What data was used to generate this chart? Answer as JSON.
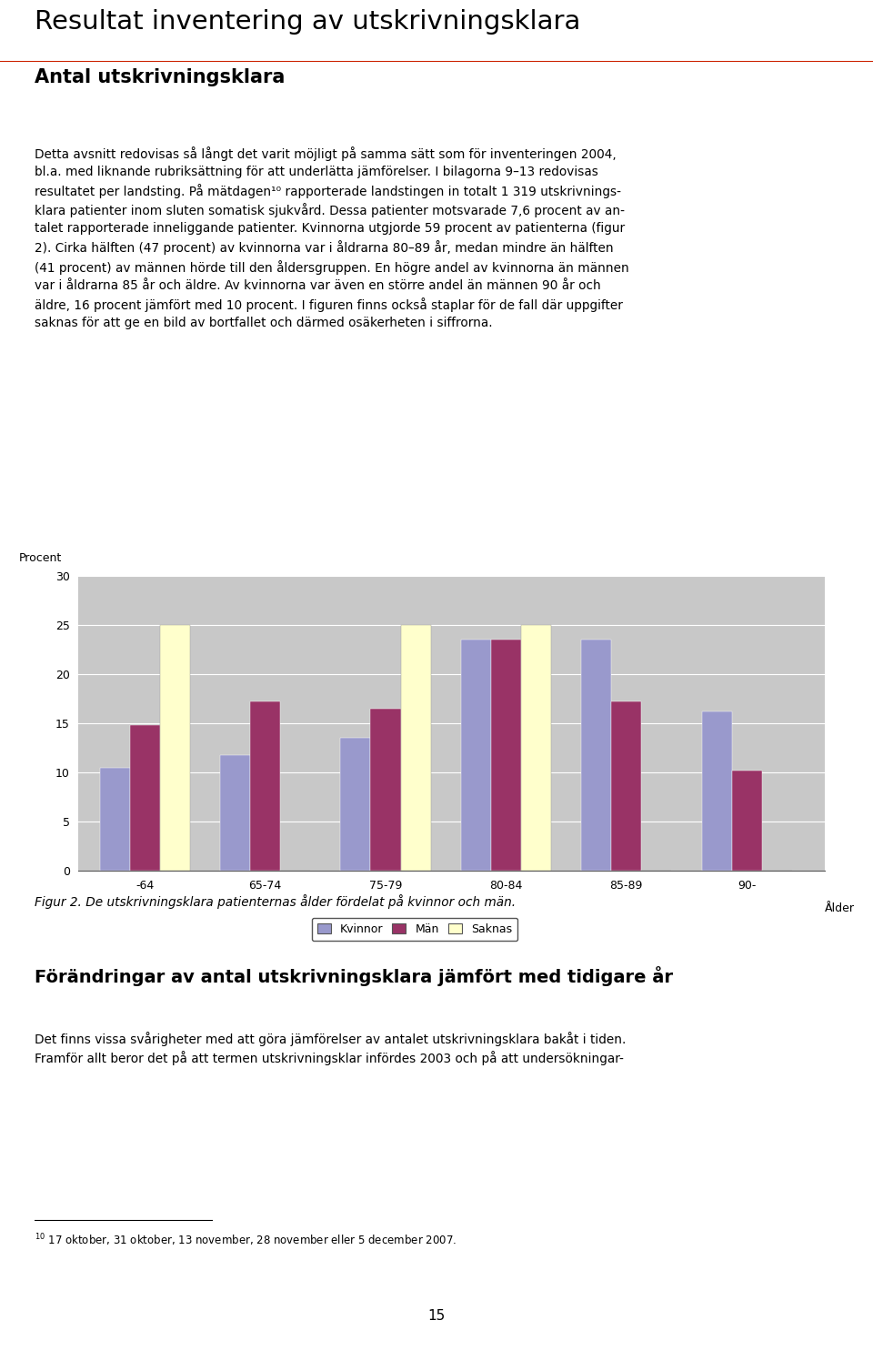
{
  "categories": [
    "-64",
    "65-74",
    "75-79",
    "80-84",
    "85-89",
    "90-"
  ],
  "xlabel_extra": "Ålder",
  "kvinnor": [
    10.5,
    11.8,
    13.5,
    23.5,
    23.5,
    16.2
  ],
  "man": [
    14.8,
    17.2,
    16.5,
    23.5,
    17.2,
    10.2
  ],
  "saknas": [
    25.0,
    0.0,
    25.0,
    25.0,
    0.0,
    0.0
  ],
  "color_kvinnor": "#9999CC",
  "color_man": "#993366",
  "color_saknas": "#FFFFCC",
  "ylim": [
    0,
    30
  ],
  "yticks": [
    0,
    5,
    10,
    15,
    20,
    25,
    30
  ],
  "ylabel": "Procent",
  "legend_labels": [
    "Kvinnor",
    "Män",
    "Saknas"
  ],
  "plot_bg": "#C8C8C8",
  "bar_width": 0.25,
  "figure_caption": "Figur 2. De utskrivningsklara patienternas ålder fördelat på kvinnor och män.",
  "title_text": "Resultat inventering av utskrivningsklara",
  "section_heading": "Antal utskrivningsklara",
  "body_text2": "Förändringar av antal utskrivningsklara jämfört med tidigare år",
  "footnote": "10 17 oktober, 31 oktober, 13 november, 28 november eller 5 december 2007.",
  "page_number": "15"
}
